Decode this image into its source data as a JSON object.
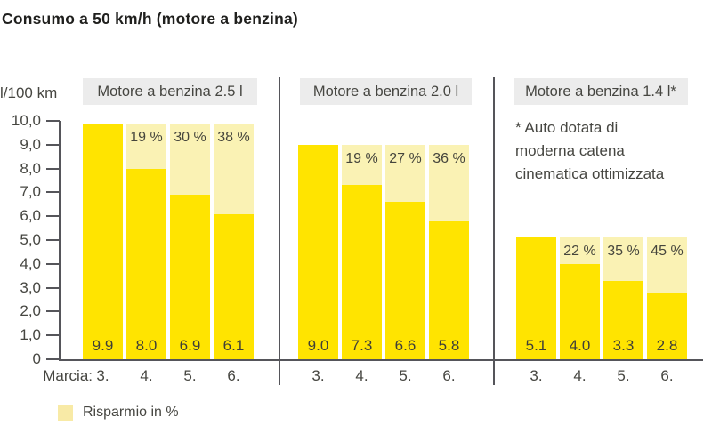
{
  "title": "Consumo a 50 km/h (motore a benzina)",
  "y_axis": {
    "unit_label": "l/100 km",
    "ticks": [
      "10,0",
      "9,0",
      "8,0",
      "7,0",
      "6,0",
      "5,0",
      "4,0",
      "3,0",
      "2,0",
      "1,0",
      "0"
    ]
  },
  "x_axis": {
    "prefix_label": "Marcia:",
    "gears": [
      "3.",
      "4.",
      "5.",
      "6."
    ]
  },
  "legend": {
    "label": "Risparmio in %"
  },
  "footnote_lines": [
    "* Auto dotata di",
    "moderna catena",
    "cinematica ottimizzata"
  ],
  "colors": {
    "bar_yellow": "#ffe400",
    "saving_light": "#faf2b4",
    "legend_swatch": "#f8eaa6",
    "header_bg": "#ececec",
    "line": "#55555a",
    "text_dark": "#3f3f38"
  },
  "chart_data": {
    "type": "bar",
    "title": "Consumo a 50 km/h (motore a benzina)",
    "ylabel": "l/100 km",
    "ylim": [
      0,
      10
    ],
    "y_tick_step": 1.0,
    "categories": [
      "3.",
      "4.",
      "5.",
      "6."
    ],
    "legend": "Risparmio in %",
    "grid": false,
    "groups": [
      {
        "label": "Motore a benzina 2.5 l",
        "values": [
          9.9,
          8.0,
          6.9,
          6.1
        ],
        "value_labels": [
          "9.9",
          "8.0",
          "6.9",
          "6.1"
        ],
        "savings": [
          null,
          "19 %",
          "30 %",
          "38 %"
        ]
      },
      {
        "label": "Motore a benzina 2.0 l",
        "values": [
          9.0,
          7.3,
          6.6,
          5.8
        ],
        "value_labels": [
          "9.0",
          "7.3",
          "6.6",
          "5.8"
        ],
        "savings": [
          null,
          "19 %",
          "27 %",
          "36 %"
        ]
      },
      {
        "label": "Motore a benzina 1.4 l*",
        "values": [
          5.1,
          4.0,
          3.3,
          2.8
        ],
        "value_labels": [
          "5.1",
          "4.0",
          "3.3",
          "2.8"
        ],
        "savings": [
          null,
          "22 %",
          "35 %",
          "45 %"
        ]
      }
    ],
    "footnote": "* Auto dotata di moderna catena cinematica ottimizzata"
  }
}
